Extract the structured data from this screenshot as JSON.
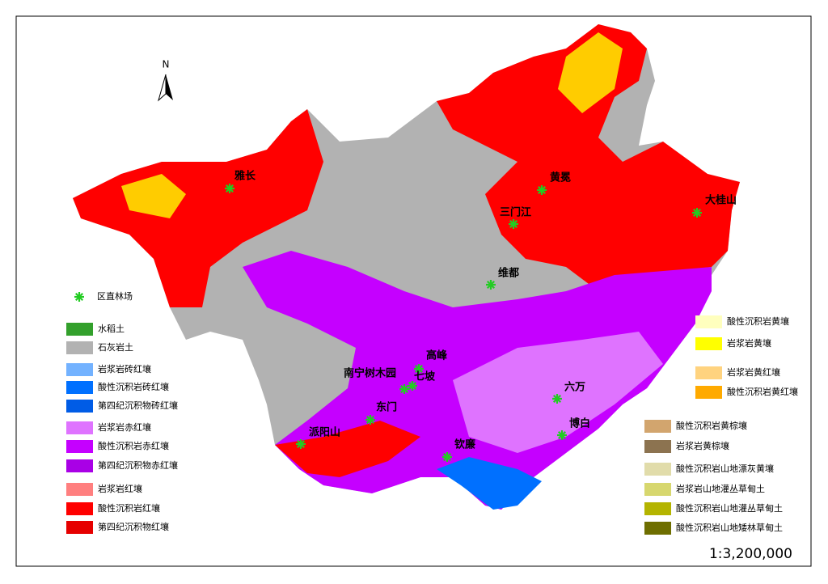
{
  "north": "N",
  "scale": "1:3,200,000",
  "sites_legend": "区直林场",
  "sites": [
    "雅长",
    "黄冕",
    "三门江",
    "大桂山",
    "维都",
    "高峰",
    "南宁树木园",
    "七坡",
    "六万",
    "东门",
    "派阳山",
    "钦廉",
    "博白"
  ],
  "legend": [
    {
      "label": "水稻土",
      "color": "#33a02c"
    },
    {
      "label": "石灰岩土",
      "color": "#b2b2b2"
    },
    {
      "label": "岩浆岩砖红壤",
      "color": "#73b2ff"
    },
    {
      "label": "酸性沉积岩砖红壤",
      "color": "#0070ff"
    },
    {
      "label": "第四纪沉积物砖红壤",
      "color": "#005ce6"
    },
    {
      "label": "岩浆岩赤红壤",
      "color": "#df73ff"
    },
    {
      "label": "酸性沉积岩赤红壤",
      "color": "#c500ff"
    },
    {
      "label": "第四纪沉积物赤红壤",
      "color": "#a900e6"
    },
    {
      "label": "岩浆岩红壤",
      "color": "#ff7f7f"
    },
    {
      "label": "酸性沉积岩红壤",
      "color": "#ff0000"
    },
    {
      "label": "第四纪沉积物红壤",
      "color": "#e60000"
    },
    {
      "label": "酸性沉积岩黄壤",
      "color": "#ffffbe"
    },
    {
      "label": "岩浆岩黄壤",
      "color": "#ffff00"
    },
    {
      "label": "岩浆岩黄红壤",
      "color": "#ffd37f"
    },
    {
      "label": "酸性沉积岩黄红壤",
      "color": "#ffaa00"
    },
    {
      "label": "酸性沉积岩黄棕壤",
      "color": "#d2a56e"
    },
    {
      "label": "岩浆岩黄棕壤",
      "color": "#8c7350"
    },
    {
      "label": "酸性沉积岩山地漂灰黄壤",
      "color": "#e1dcaa"
    },
    {
      "label": "岩浆岩山地灌丛草甸土",
      "color": "#d7d76e"
    },
    {
      "label": "酸性沉积岩山地灌丛草甸土",
      "color": "#b4b400"
    },
    {
      "label": "酸性沉积岩山地矮林草甸土",
      "color": "#6e6e00"
    }
  ]
}
